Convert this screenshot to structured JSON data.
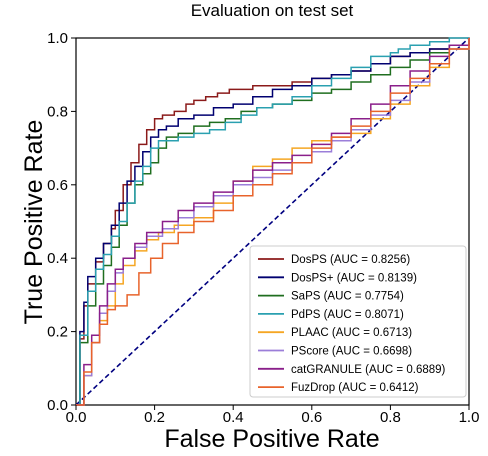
{
  "chart_data": {
    "type": "line",
    "title": "Evaluation on test set",
    "xlabel": "False Positive Rate",
    "ylabel": "True Positive Rate",
    "xlim": [
      0,
      1
    ],
    "ylim": [
      0,
      1
    ],
    "xticks": [
      "0.0",
      "0.2",
      "0.4",
      "0.6",
      "0.8",
      "1.0"
    ],
    "yticks": [
      "0.0",
      "0.2",
      "0.4",
      "0.6",
      "0.8",
      "1.0"
    ],
    "grid": false,
    "legend_position": "lower-right",
    "reference_line": {
      "style": "dashed",
      "color": "#000080",
      "x": [
        0,
        1
      ],
      "y": [
        0,
        1
      ]
    },
    "series": [
      {
        "name": "DosPS (AUC = 0.8256)",
        "color": "#8b1a1a",
        "x": [
          0,
          0.01,
          0.02,
          0.03,
          0.05,
          0.07,
          0.09,
          0.1,
          0.12,
          0.14,
          0.16,
          0.18,
          0.2,
          0.22,
          0.25,
          0.28,
          0.3,
          0.33,
          0.36,
          0.39,
          0.42,
          0.45,
          0.5,
          0.55,
          0.6,
          0.65,
          0.7,
          0.75,
          0.8,
          0.85,
          0.9,
          0.95,
          1.0
        ],
        "y": [
          0,
          0.18,
          0.27,
          0.33,
          0.39,
          0.44,
          0.48,
          0.53,
          0.6,
          0.66,
          0.71,
          0.75,
          0.78,
          0.79,
          0.8,
          0.82,
          0.83,
          0.84,
          0.85,
          0.86,
          0.86,
          0.87,
          0.87,
          0.88,
          0.89,
          0.9,
          0.91,
          0.93,
          0.95,
          0.96,
          0.97,
          0.98,
          1.0
        ]
      },
      {
        "name": "DosPS+ (AUC = 0.8139)",
        "color": "#000070",
        "x": [
          0,
          0.01,
          0.02,
          0.03,
          0.05,
          0.07,
          0.09,
          0.11,
          0.13,
          0.15,
          0.17,
          0.19,
          0.21,
          0.23,
          0.26,
          0.3,
          0.35,
          0.4,
          0.45,
          0.5,
          0.55,
          0.6,
          0.65,
          0.7,
          0.75,
          0.8,
          0.85,
          0.9,
          0.95,
          1.0
        ],
        "y": [
          0,
          0.2,
          0.28,
          0.35,
          0.4,
          0.44,
          0.49,
          0.55,
          0.61,
          0.65,
          0.69,
          0.73,
          0.75,
          0.76,
          0.78,
          0.79,
          0.81,
          0.82,
          0.84,
          0.86,
          0.87,
          0.89,
          0.9,
          0.91,
          0.93,
          0.95,
          0.96,
          0.97,
          0.98,
          1.0
        ]
      },
      {
        "name": "SaPS (AUC = 0.7754)",
        "color": "#1f6e1f",
        "x": [
          0,
          0.01,
          0.03,
          0.05,
          0.07,
          0.09,
          0.11,
          0.13,
          0.15,
          0.17,
          0.19,
          0.21,
          0.23,
          0.26,
          0.3,
          0.34,
          0.38,
          0.42,
          0.46,
          0.5,
          0.55,
          0.6,
          0.65,
          0.7,
          0.75,
          0.8,
          0.85,
          0.9,
          0.95,
          1.0
        ],
        "y": [
          0,
          0.17,
          0.27,
          0.33,
          0.38,
          0.43,
          0.49,
          0.55,
          0.6,
          0.63,
          0.66,
          0.7,
          0.73,
          0.74,
          0.76,
          0.77,
          0.78,
          0.8,
          0.81,
          0.82,
          0.83,
          0.85,
          0.86,
          0.88,
          0.9,
          0.92,
          0.94,
          0.96,
          0.98,
          1.0
        ]
      },
      {
        "name": "PdPS (AUC = 0.8071)",
        "color": "#2aa0b0",
        "x": [
          0,
          0.01,
          0.03,
          0.05,
          0.07,
          0.09,
          0.11,
          0.13,
          0.15,
          0.17,
          0.19,
          0.21,
          0.23,
          0.26,
          0.3,
          0.34,
          0.38,
          0.42,
          0.46,
          0.5,
          0.55,
          0.6,
          0.65,
          0.7,
          0.75,
          0.8,
          0.82,
          0.85,
          0.9,
          0.95,
          1.0
        ],
        "y": [
          0,
          0.19,
          0.31,
          0.37,
          0.41,
          0.46,
          0.5,
          0.55,
          0.61,
          0.65,
          0.7,
          0.72,
          0.72,
          0.73,
          0.74,
          0.75,
          0.77,
          0.79,
          0.81,
          0.82,
          0.84,
          0.87,
          0.89,
          0.92,
          0.95,
          0.96,
          0.97,
          0.98,
          0.99,
          1.0,
          1.0
        ]
      },
      {
        "name": "PLAAC (AUC = 0.6713)",
        "color": "#f5a623",
        "x": [
          0,
          0.02,
          0.04,
          0.06,
          0.08,
          0.1,
          0.12,
          0.15,
          0.18,
          0.21,
          0.25,
          0.3,
          0.35,
          0.4,
          0.45,
          0.5,
          0.55,
          0.6,
          0.65,
          0.7,
          0.75,
          0.8,
          0.85,
          0.9,
          0.95,
          1.0
        ],
        "y": [
          0,
          0.08,
          0.17,
          0.23,
          0.27,
          0.33,
          0.38,
          0.42,
          0.45,
          0.47,
          0.49,
          0.51,
          0.55,
          0.61,
          0.65,
          0.67,
          0.7,
          0.72,
          0.73,
          0.74,
          0.78,
          0.82,
          0.87,
          0.92,
          0.97,
          1.0
        ]
      },
      {
        "name": "PScore (AUC = 0.6698)",
        "color": "#9b7ed9",
        "x": [
          0,
          0.02,
          0.04,
          0.06,
          0.08,
          0.1,
          0.12,
          0.15,
          0.18,
          0.22,
          0.26,
          0.3,
          0.35,
          0.4,
          0.45,
          0.5,
          0.55,
          0.6,
          0.65,
          0.7,
          0.75,
          0.8,
          0.85,
          0.9,
          0.95,
          1.0
        ],
        "y": [
          0,
          0.08,
          0.17,
          0.25,
          0.31,
          0.36,
          0.4,
          0.43,
          0.46,
          0.48,
          0.51,
          0.54,
          0.57,
          0.6,
          0.62,
          0.64,
          0.66,
          0.69,
          0.72,
          0.75,
          0.79,
          0.83,
          0.88,
          0.93,
          0.97,
          1.0
        ]
      },
      {
        "name": "catGRANULE (AUC = 0.6889)",
        "color": "#8a1f8a",
        "x": [
          0,
          0.02,
          0.04,
          0.06,
          0.08,
          0.1,
          0.12,
          0.15,
          0.18,
          0.22,
          0.26,
          0.3,
          0.35,
          0.4,
          0.45,
          0.5,
          0.55,
          0.6,
          0.65,
          0.7,
          0.75,
          0.8,
          0.85,
          0.9,
          0.95,
          1.0
        ],
        "y": [
          0,
          0.11,
          0.19,
          0.27,
          0.33,
          0.37,
          0.4,
          0.44,
          0.47,
          0.5,
          0.53,
          0.55,
          0.58,
          0.61,
          0.64,
          0.66,
          0.68,
          0.71,
          0.74,
          0.78,
          0.82,
          0.87,
          0.91,
          0.95,
          0.98,
          1.0
        ]
      },
      {
        "name": "FuzDrop (AUC = 0.6412)",
        "color": "#e8632b",
        "x": [
          0,
          0.02,
          0.04,
          0.06,
          0.08,
          0.1,
          0.13,
          0.16,
          0.19,
          0.22,
          0.26,
          0.3,
          0.35,
          0.4,
          0.45,
          0.5,
          0.55,
          0.6,
          0.65,
          0.7,
          0.75,
          0.8,
          0.85,
          0.9,
          0.95,
          1.0
        ],
        "y": [
          0,
          0.09,
          0.17,
          0.22,
          0.26,
          0.27,
          0.3,
          0.36,
          0.4,
          0.44,
          0.47,
          0.5,
          0.53,
          0.57,
          0.6,
          0.63,
          0.66,
          0.7,
          0.73,
          0.76,
          0.8,
          0.85,
          0.89,
          0.93,
          0.97,
          1.0
        ]
      }
    ]
  }
}
